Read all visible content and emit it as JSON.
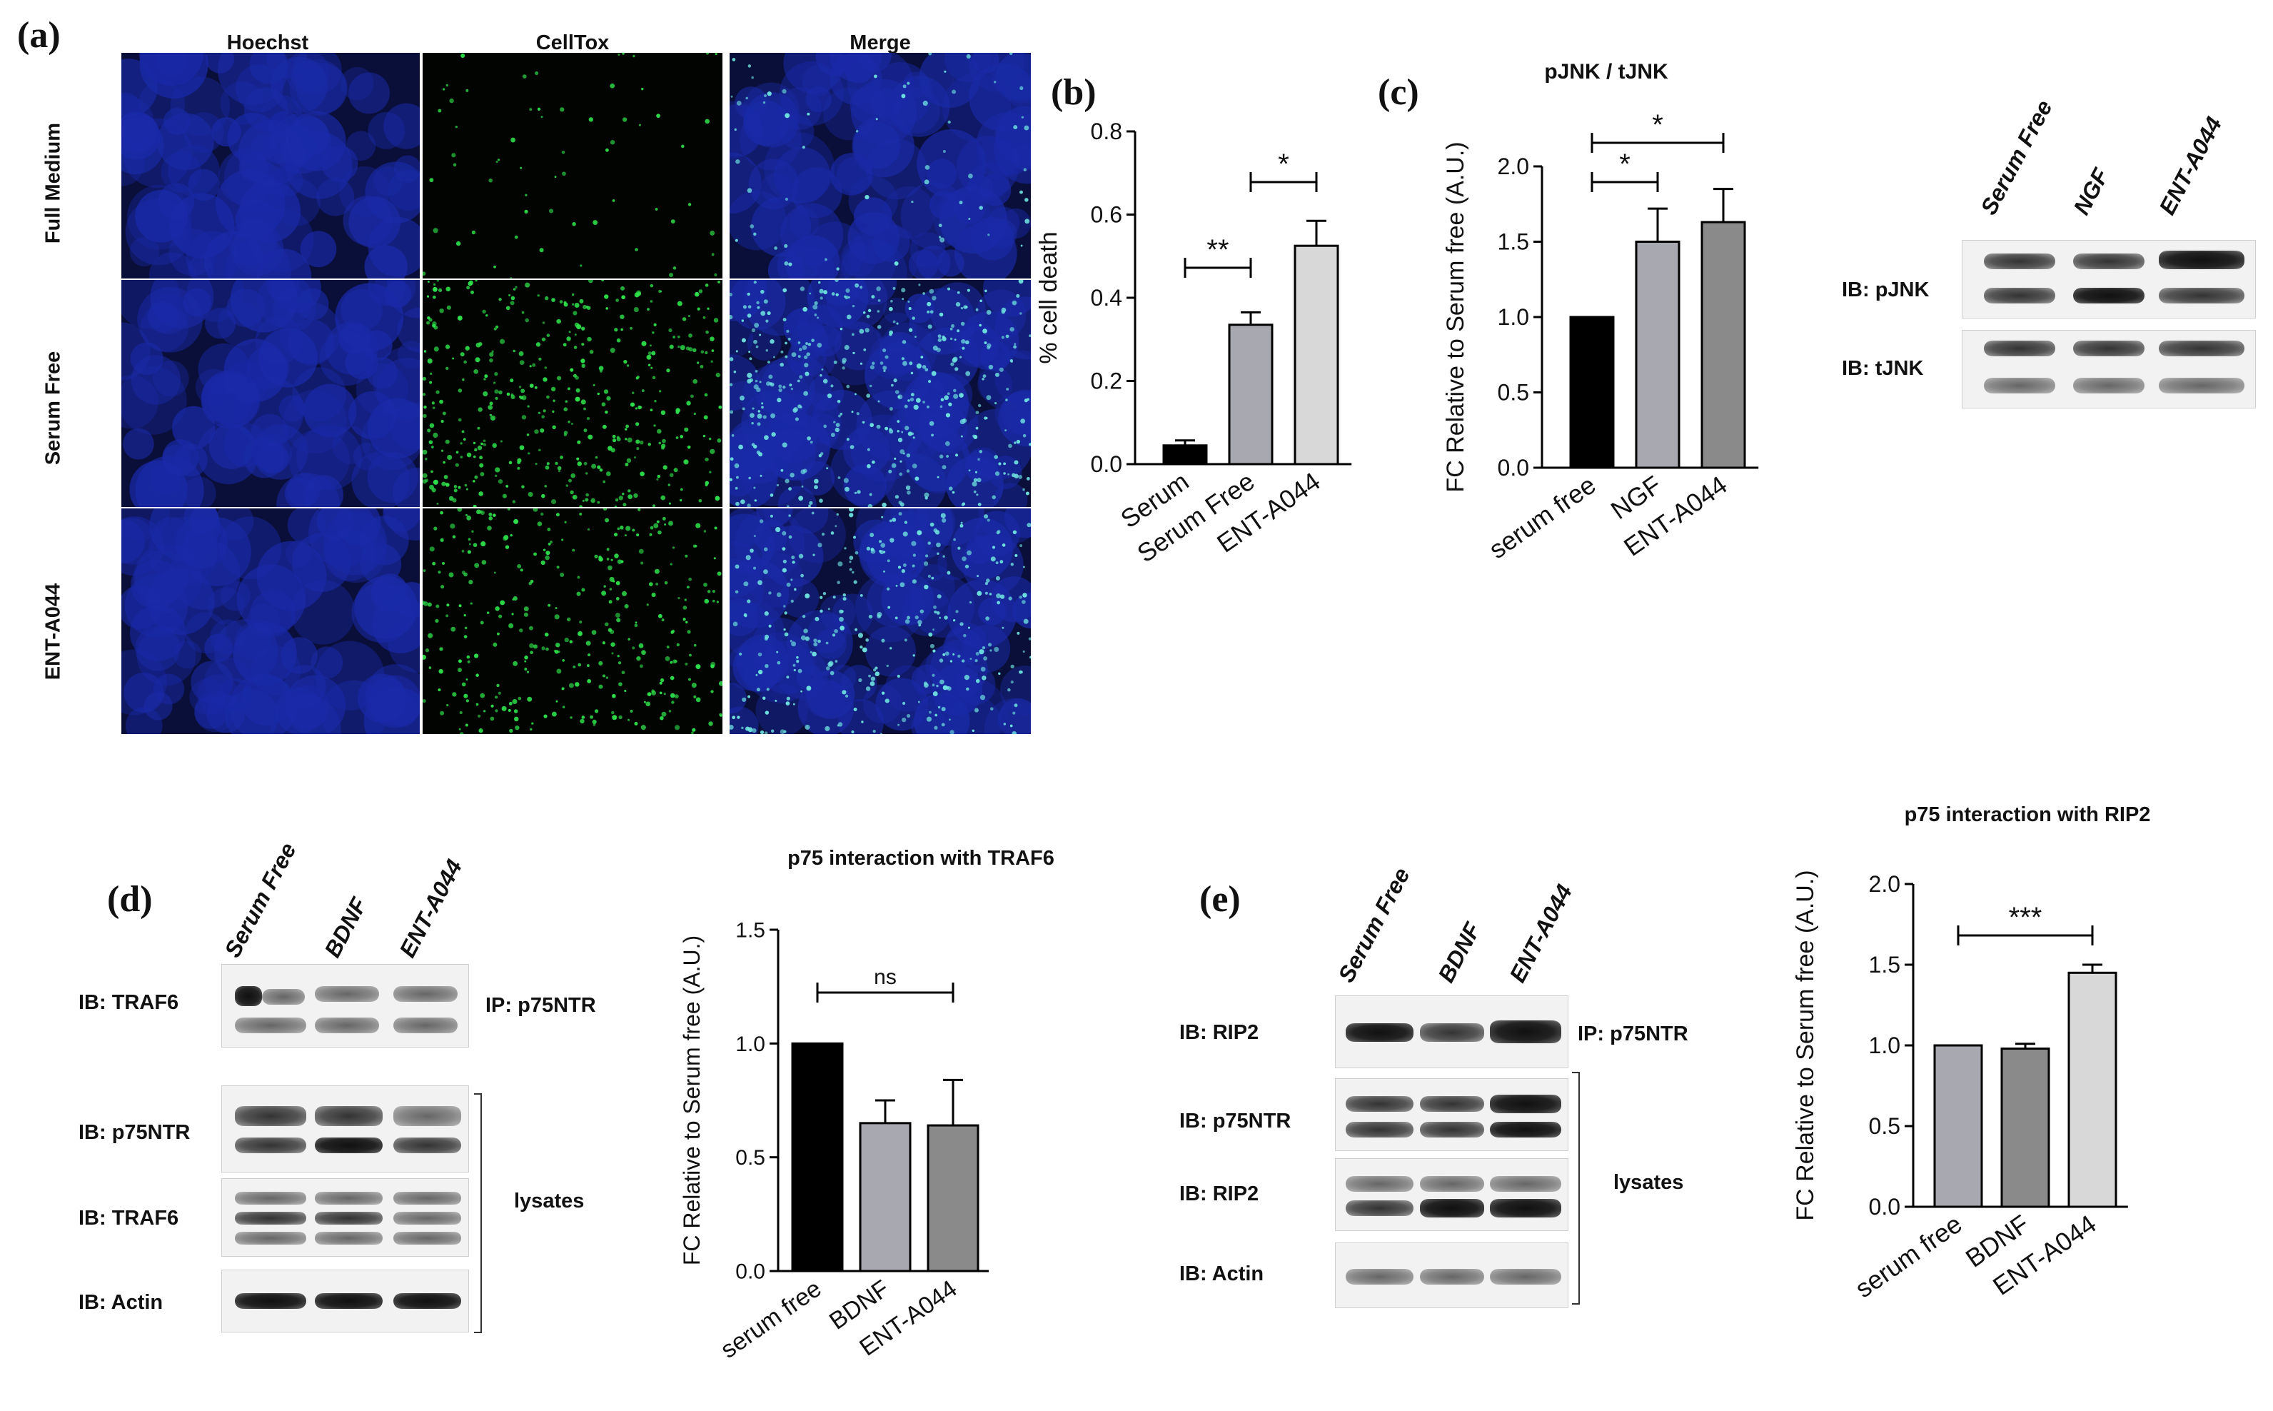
{
  "panels": {
    "a": {
      "letter": "(a)",
      "columns": [
        "Hoechst",
        "CellTox",
        "Merge"
      ],
      "rows": [
        "Full Medium",
        "Serum Free",
        "ENT-A044"
      ]
    },
    "b": {
      "letter": "(b)"
    },
    "c": {
      "letter": "(c)",
      "blot_lanes": [
        "Serum Free",
        "NGF",
        "ENT-A044"
      ],
      "blot_labels": [
        "IB: pJNK",
        "IB: tJNK"
      ]
    },
    "d": {
      "letter": "(d)",
      "blot_lanes": [
        "Serum Free",
        "BDNF",
        "ENT-A044"
      ],
      "blot_labels": [
        "IB: TRAF6",
        "IB: p75NTR",
        "IB: TRAF6",
        "IB: Actin"
      ],
      "ip_label": "IP: p75NTR",
      "lysates_label": "lysates"
    },
    "e": {
      "letter": "(e)",
      "blot_lanes": [
        "Serum Free",
        "BDNF",
        "ENT-A044"
      ],
      "blot_labels": [
        "IB: RIP2",
        "IB: p75NTR",
        "IB: RIP2",
        "IB: Actin"
      ],
      "ip_label": "IP: p75NTR",
      "lysates_label": "lysates"
    }
  },
  "colors": {
    "hoechst": "#1a2aa8",
    "celltox": "#2ee04a",
    "black_bar": "#000000",
    "light_gray_bar": "#a8a8b0",
    "mid_gray_bar": "#8a8a8a",
    "pale_bar": "#d8d8d8"
  },
  "chart_data": [
    {
      "id": "b",
      "type": "bar",
      "title": "",
      "ylabel": "% cell death",
      "categories": [
        "Serum",
        "Serum Free",
        "ENT-A044"
      ],
      "values": [
        0.045,
        0.335,
        0.525
      ],
      "errors": [
        0.012,
        0.03,
        0.06
      ],
      "colors": [
        "#000000",
        "#a8a8b0",
        "#d8d8d8"
      ],
      "ylim": [
        0,
        0.8
      ],
      "yticks": [
        "0.0",
        "0.2",
        "0.4",
        "0.6",
        "0.8"
      ],
      "significance": [
        {
          "from": 0,
          "to": 1,
          "label": "**"
        },
        {
          "from": 1,
          "to": 2,
          "label": "*"
        }
      ]
    },
    {
      "id": "c",
      "type": "bar",
      "title": "pJNK / tJNK",
      "ylabel": "FC Relative to Serum free  (A.U.)",
      "categories": [
        "serum free",
        "NGF",
        "ENT-A044"
      ],
      "values": [
        1.0,
        1.5,
        1.63
      ],
      "errors": [
        0,
        0.22,
        0.22
      ],
      "colors": [
        "#000000",
        "#a8a8b0",
        "#8a8a8a"
      ],
      "ylim": [
        0,
        2.0
      ],
      "yticks": [
        "0.0",
        "0.5",
        "1.0",
        "1.5",
        "2.0"
      ],
      "significance": [
        {
          "from": 0,
          "to": 1,
          "label": "*"
        },
        {
          "from": 0,
          "to": 2,
          "label": "*"
        }
      ]
    },
    {
      "id": "d",
      "type": "bar",
      "title": "p75 interaction with TRAF6",
      "ylabel": "FC Relative to Serum free (A.U.)",
      "categories": [
        "serum free",
        "BDNF",
        "ENT-A044"
      ],
      "values": [
        1.0,
        0.65,
        0.64
      ],
      "errors": [
        0,
        0.1,
        0.2
      ],
      "colors": [
        "#000000",
        "#a8a8b0",
        "#8a8a8a"
      ],
      "ylim": [
        0,
        1.5
      ],
      "yticks": [
        "0.0",
        "0.5",
        "1.0",
        "1.5"
      ],
      "significance": [
        {
          "from": 0,
          "to": 2,
          "label": "ns"
        }
      ]
    },
    {
      "id": "e",
      "type": "bar",
      "title": "p75 interaction with RIP2",
      "ylabel": "FC Relative to Serum free (A.U.)",
      "categories": [
        "serum free",
        "BDNF",
        "ENT-A044"
      ],
      "values": [
        1.0,
        0.98,
        1.45
      ],
      "errors": [
        0,
        0.03,
        0.05
      ],
      "colors": [
        "#a8a8b0",
        "#8a8a8a",
        "#d8d8d8"
      ],
      "ylim": [
        0,
        2.0
      ],
      "yticks": [
        "0.0",
        "0.5",
        "1.0",
        "1.5",
        "2.0"
      ],
      "significance": [
        {
          "from": 0,
          "to": 2,
          "label": "***"
        }
      ]
    }
  ]
}
